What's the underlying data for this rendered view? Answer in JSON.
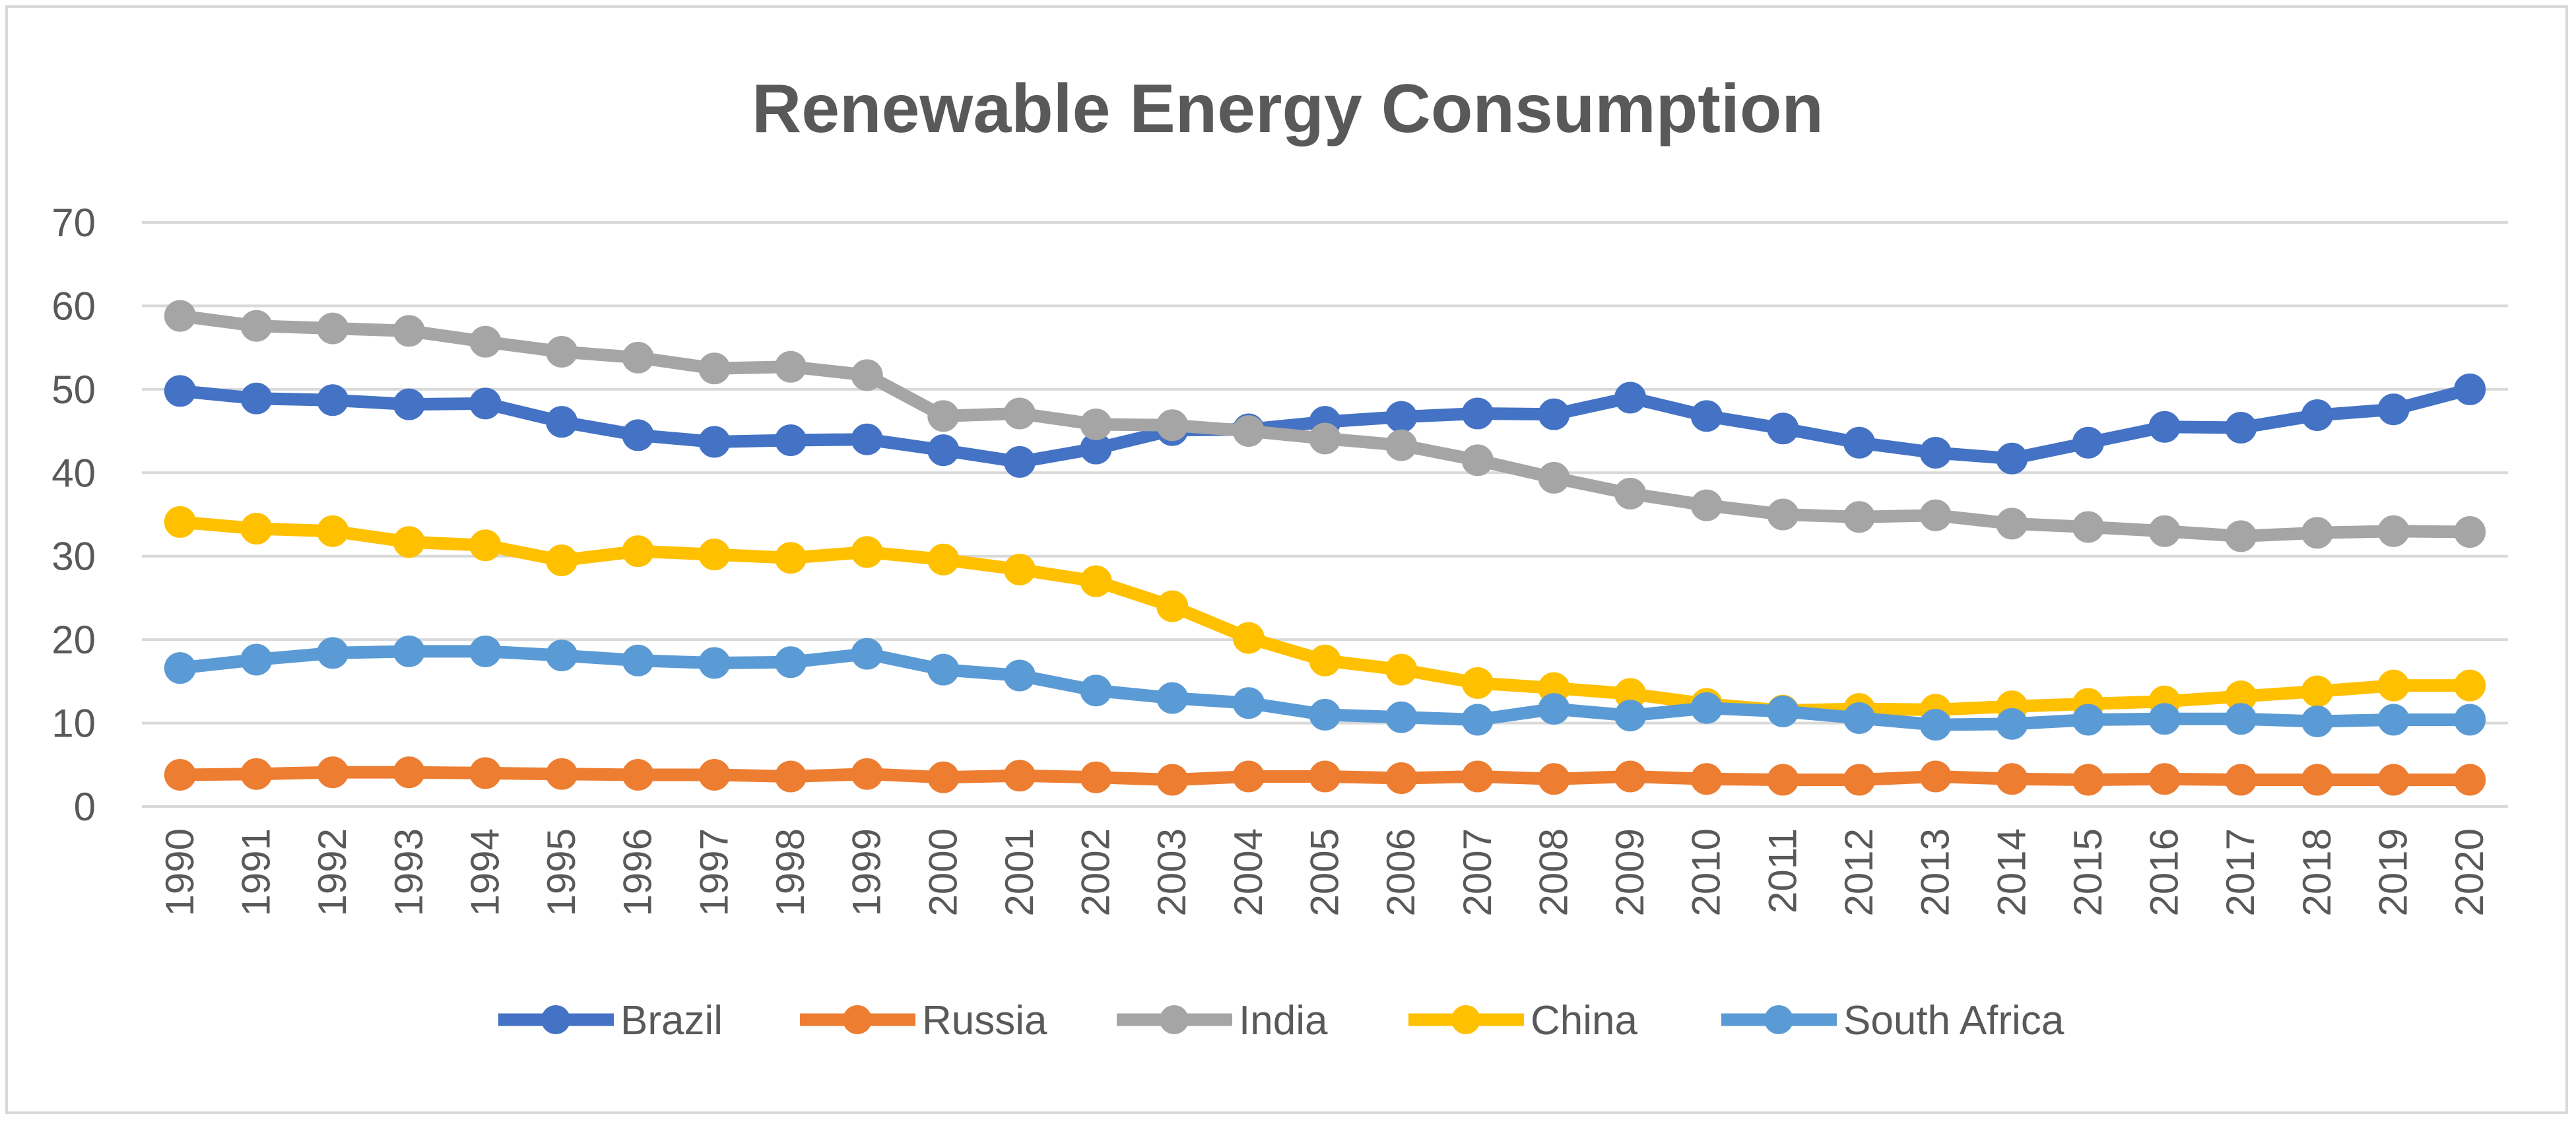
{
  "chart_data": {
    "type": "line",
    "title": "Renewable Energy Consumption",
    "xlabel": "",
    "ylabel": "",
    "ylim": [
      0,
      70
    ],
    "yticks": [
      0,
      10,
      20,
      30,
      40,
      50,
      60,
      70
    ],
    "grid": true,
    "legend_position": "bottom",
    "categories": [
      "1990",
      "1991",
      "1992",
      "1993",
      "1994",
      "1995",
      "1996",
      "1997",
      "1998",
      "1999",
      "2000",
      "2001",
      "2002",
      "2003",
      "2004",
      "2005",
      "2006",
      "2007",
      "2008",
      "2009",
      "2010",
      "2011",
      "2012",
      "2013",
      "2014",
      "2015",
      "2016",
      "2017",
      "2018",
      "2019",
      "2020"
    ],
    "series": [
      {
        "name": "Brazil",
        "color": "#4472c4",
        "values": [
          49.8,
          48.9,
          48.7,
          48.2,
          48.3,
          46.1,
          44.5,
          43.7,
          43.9,
          44.0,
          42.7,
          41.3,
          42.9,
          45.1,
          45.2,
          46.1,
          46.7,
          47.1,
          47.0,
          49.0,
          46.8,
          45.3,
          43.6,
          42.4,
          41.7,
          43.6,
          45.5,
          45.4,
          46.9,
          47.6,
          50.0
        ]
      },
      {
        "name": "Russia",
        "color": "#ed7d31",
        "values": [
          3.8,
          3.9,
          4.1,
          4.1,
          4.0,
          3.9,
          3.8,
          3.8,
          3.6,
          3.9,
          3.5,
          3.7,
          3.5,
          3.2,
          3.6,
          3.6,
          3.4,
          3.6,
          3.3,
          3.6,
          3.3,
          3.2,
          3.2,
          3.6,
          3.3,
          3.2,
          3.3,
          3.2,
          3.2,
          3.2,
          3.2
        ]
      },
      {
        "name": "India",
        "color": "#a5a5a5",
        "values": [
          58.8,
          57.6,
          57.3,
          57.0,
          55.7,
          54.5,
          53.8,
          52.5,
          52.7,
          51.7,
          46.8,
          47.1,
          45.8,
          45.7,
          45.0,
          44.1,
          43.3,
          41.5,
          39.4,
          37.5,
          36.1,
          35.0,
          34.7,
          34.9,
          33.9,
          33.5,
          33.0,
          32.4,
          32.8,
          33.0,
          32.9
        ]
      },
      {
        "name": "China",
        "color": "#ffc000",
        "values": [
          34.1,
          33.3,
          33.0,
          31.7,
          31.3,
          29.5,
          30.6,
          30.2,
          29.8,
          30.5,
          29.6,
          28.4,
          27.0,
          24.0,
          20.2,
          17.5,
          16.4,
          14.8,
          14.2,
          13.5,
          12.3,
          11.5,
          11.7,
          11.6,
          12.0,
          12.3,
          12.6,
          13.2,
          13.8,
          14.5,
          14.5
        ]
      },
      {
        "name": "South Africa",
        "color": "#5b9bd5",
        "values": [
          16.6,
          17.6,
          18.4,
          18.6,
          18.6,
          18.1,
          17.5,
          17.2,
          17.3,
          18.3,
          16.4,
          15.7,
          13.9,
          13.0,
          12.4,
          11.0,
          10.7,
          10.4,
          11.7,
          10.9,
          11.8,
          11.4,
          10.6,
          9.8,
          9.9,
          10.4,
          10.5,
          10.5,
          10.2,
          10.4,
          10.4
        ]
      }
    ]
  }
}
